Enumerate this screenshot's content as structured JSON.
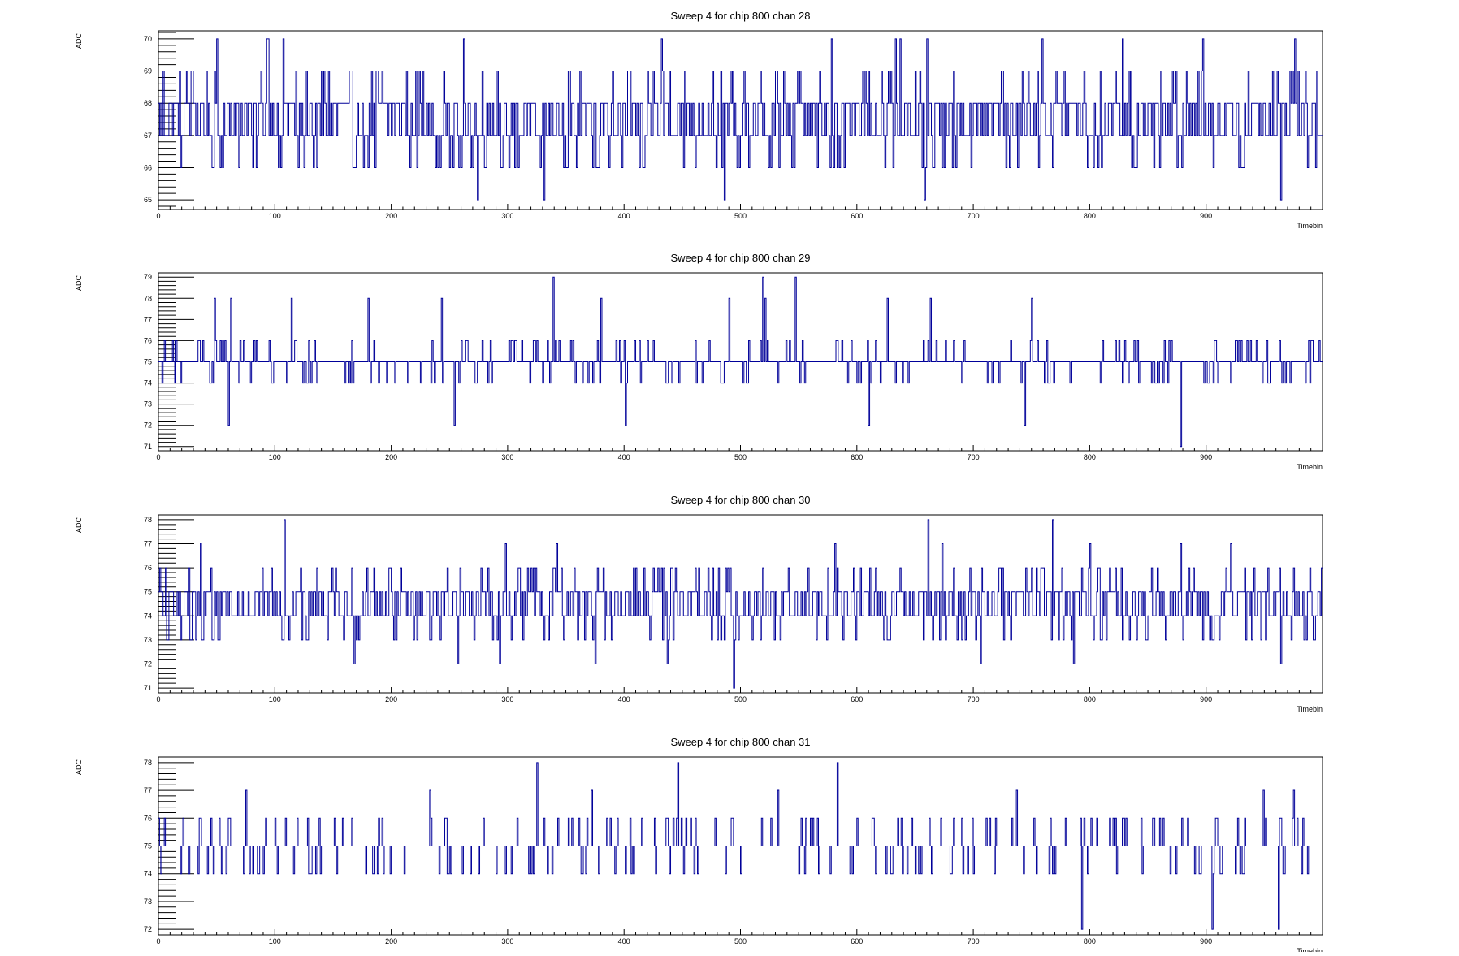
{
  "colors": {
    "series": "#000099",
    "frame": "#000000",
    "background": "#ffffff"
  },
  "chart_data": [
    {
      "type": "line",
      "title": "Sweep 4 for chip 800 chan 28",
      "xlabel": "Timebin",
      "ylabel": "ADC",
      "xlim": [
        0,
        1000
      ],
      "ylim": [
        64.7,
        70.25
      ],
      "xticks": [
        0,
        100,
        200,
        300,
        400,
        500,
        600,
        700,
        800,
        900
      ],
      "yticks": [
        65,
        66,
        67,
        68,
        69,
        70
      ],
      "grid": false,
      "series": [
        {
          "base": 67,
          "center": 67.5,
          "min": 65,
          "max": 70,
          "dips": [
            [
              274,
              65
            ],
            [
              331,
              65
            ],
            [
              486,
              65
            ],
            [
              658,
              65
            ],
            [
              964,
              65
            ]
          ],
          "peaks": [
            [
              50,
              70
            ],
            [
              93,
              70
            ],
            [
              94,
              70
            ],
            [
              107,
              70
            ],
            [
              262,
              70
            ],
            [
              432,
              70
            ],
            [
              578,
              70
            ],
            [
              633,
              70
            ],
            [
              637,
              70
            ],
            [
              660,
              70
            ],
            [
              759,
              70
            ],
            [
              828,
              70
            ],
            [
              897,
              70
            ],
            [
              976,
              70
            ]
          ]
        }
      ]
    },
    {
      "type": "line",
      "title": "Sweep 4 for chip 800 chan 29",
      "xlabel": "Timebin",
      "ylabel": "ADC",
      "xlim": [
        0,
        1000
      ],
      "ylim": [
        70.8,
        79.2
      ],
      "xticks": [
        0,
        100,
        200,
        300,
        400,
        500,
        600,
        700,
        800,
        900
      ],
      "yticks": [
        71,
        72,
        73,
        74,
        75,
        76,
        77,
        78,
        79
      ],
      "grid": false,
      "series": [
        {
          "base": 75,
          "center": 75,
          "min": 71,
          "max": 79,
          "dips": [
            [
              60,
              72
            ],
            [
              254,
              72
            ],
            [
              401,
              72
            ],
            [
              610,
              72
            ],
            [
              744,
              72
            ],
            [
              878,
              71
            ]
          ],
          "peaks": [
            [
              339,
              79
            ],
            [
              519,
              79
            ],
            [
              547,
              79
            ],
            [
              48,
              78
            ],
            [
              62,
              78
            ],
            [
              114,
              78
            ],
            [
              180,
              78
            ],
            [
              243,
              78
            ],
            [
              380,
              78
            ],
            [
              490,
              78
            ],
            [
              521,
              78
            ],
            [
              626,
              78
            ],
            [
              663,
              78
            ],
            [
              750,
              78
            ]
          ]
        }
      ]
    },
    {
      "type": "line",
      "title": "Sweep 4 for chip 800 chan 30",
      "xlabel": "Timebin",
      "ylabel": "ADC",
      "xlim": [
        0,
        1000
      ],
      "ylim": [
        70.8,
        78.2
      ],
      "xticks": [
        0,
        100,
        200,
        300,
        400,
        500,
        600,
        700,
        800,
        900
      ],
      "yticks": [
        71,
        72,
        73,
        74,
        75,
        76,
        77,
        78
      ],
      "grid": false,
      "series": [
        {
          "base": 74,
          "center": 74.5,
          "min": 71,
          "max": 78,
          "dips": [
            [
              168,
              72
            ],
            [
              257,
              72
            ],
            [
              293,
              72
            ],
            [
              375,
              72
            ],
            [
              437,
              72
            ],
            [
              494,
              71
            ],
            [
              706,
              72
            ],
            [
              786,
              72
            ],
            [
              964,
              72
            ]
          ],
          "peaks": [
            [
              108,
              78
            ],
            [
              661,
              78
            ],
            [
              768,
              78
            ],
            [
              36,
              77
            ],
            [
              298,
              77
            ],
            [
              342,
              77
            ],
            [
              581,
              77
            ],
            [
              673,
              77
            ],
            [
              800,
              77
            ],
            [
              878,
              77
            ],
            [
              921,
              77
            ]
          ]
        }
      ]
    },
    {
      "type": "line",
      "title": "Sweep 4 for chip 800 chan 31",
      "xlabel": "Timebin",
      "ylabel": "ADC",
      "xlim": [
        0,
        1000
      ],
      "ylim": [
        71.8,
        78.2
      ],
      "xticks": [
        0,
        100,
        200,
        300,
        400,
        500,
        600,
        700,
        800,
        900
      ],
      "yticks": [
        72,
        73,
        74,
        75,
        76,
        77,
        78
      ],
      "grid": false,
      "series": [
        {
          "base": 75,
          "center": 75,
          "min": 72,
          "max": 78,
          "dips": [
            [
              793,
              72
            ],
            [
              905,
              72
            ],
            [
              962,
              72
            ]
          ],
          "peaks": [
            [
              325,
              78
            ],
            [
              446,
              78
            ],
            [
              583,
              78
            ],
            [
              75,
              77
            ],
            [
              233,
              77
            ],
            [
              372,
              77
            ],
            [
              532,
              77
            ],
            [
              737,
              77
            ],
            [
              949,
              77
            ],
            [
              975,
              77
            ]
          ]
        }
      ]
    }
  ]
}
